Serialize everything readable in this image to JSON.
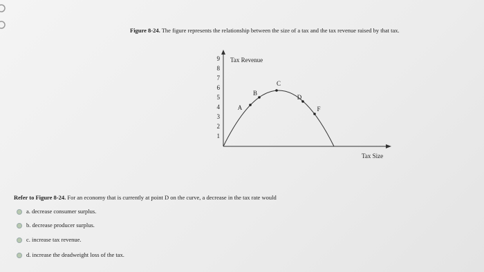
{
  "figure": {
    "caption_label": "Figure 8-24.",
    "caption_text": " The figure represents the relationship between the size of a tax and the tax revenue raised by that tax.",
    "y_axis_label": "Tax Revenue",
    "x_axis_label": "Tax Size",
    "yticks": [
      1,
      2,
      3,
      4,
      5,
      6,
      7,
      8,
      9
    ],
    "points": [
      "A",
      "B",
      "C",
      "D",
      "F"
    ]
  },
  "question": {
    "lead": "Refer to Figure 8-24.",
    "text": " For an economy that is currently at point D on the curve, a decrease in the tax rate would"
  },
  "options": [
    "a. decrease consumer surplus.",
    "b. decrease producer surplus.",
    "c. increase tax revenue.",
    "d. increase the deadweight loss of the tax."
  ]
}
